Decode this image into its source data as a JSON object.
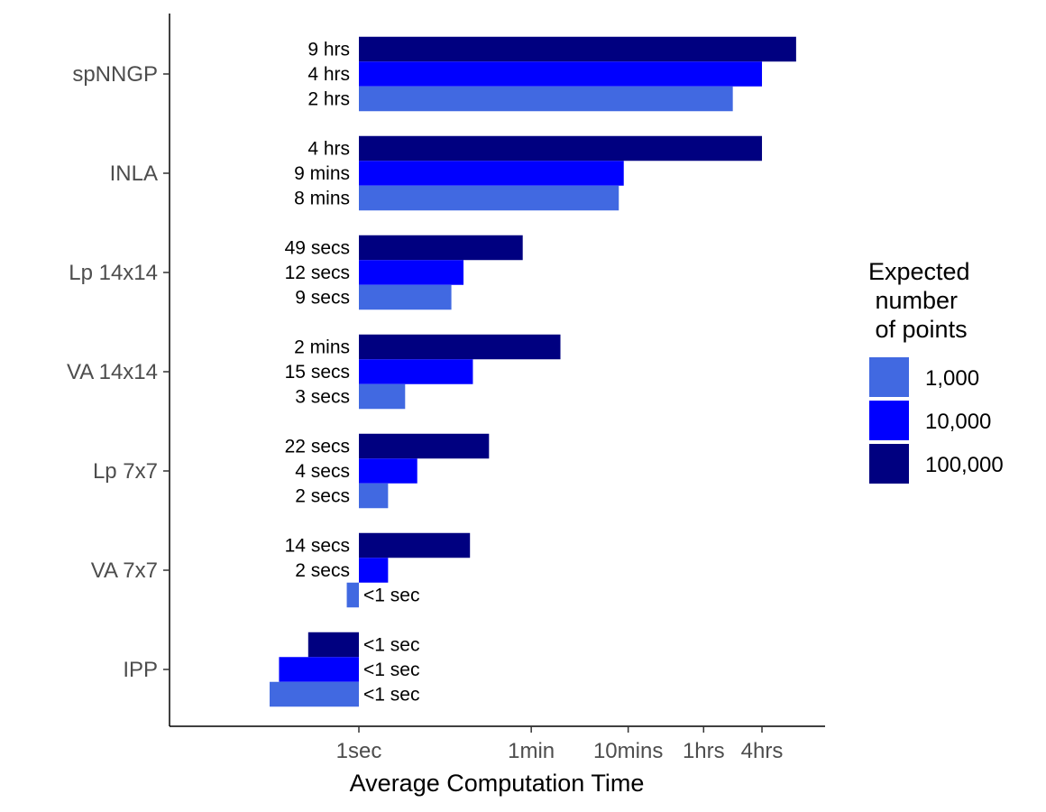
{
  "chart_data": {
    "type": "bar",
    "orientation": "horizontal",
    "xscale": "log",
    "xlabel": "Average Computation Time",
    "ylabel": "",
    "x_unit": "seconds",
    "xlim": [
      0.1,
      45000
    ],
    "bar_baseline": 1,
    "x_ticks": [
      {
        "value": 1,
        "label": "1sec"
      },
      {
        "value": 60,
        "label": "1min"
      },
      {
        "value": 600,
        "label": "10mins"
      },
      {
        "value": 3600,
        "label": "1hrs"
      },
      {
        "value": 14400,
        "label": "4hrs"
      }
    ],
    "categories": [
      "spNNGP",
      "INLA",
      "Lp 14x14",
      "VA 14x14",
      "Lp 7x7",
      "VA 7x7",
      "IPP"
    ],
    "series": [
      {
        "name": "100,000",
        "color": "#000080",
        "values": [
          32400,
          14400,
          49,
          120,
          22,
          14,
          0.3
        ],
        "labels": [
          "9 hrs",
          "4 hrs",
          "49 secs",
          "2 mins",
          "22 secs",
          "14 secs",
          "<1 sec"
        ]
      },
      {
        "name": "10,000",
        "color": "#0000FF",
        "values": [
          14400,
          540,
          12,
          15,
          4,
          2,
          0.15
        ],
        "labels": [
          "4 hrs",
          "9 mins",
          "12 secs",
          "15 secs",
          "4 secs",
          "2 secs",
          "<1 sec"
        ]
      },
      {
        "name": "1,000",
        "color": "#4169E1",
        "values": [
          7200,
          480,
          9,
          3,
          2,
          0.75,
          0.12
        ],
        "labels": [
          "2 hrs",
          "8 mins",
          "9 secs",
          "3 secs",
          "2 secs",
          "<1 sec",
          "<1 sec"
        ]
      }
    ],
    "legend": {
      "title": "Expected\n number\n of points",
      "placement": "right",
      "entries": [
        {
          "label": "1,000",
          "color": "#4169E1"
        },
        {
          "label": "10,000",
          "color": "#0000FF"
        },
        {
          "label": "100,000",
          "color": "#000080"
        }
      ]
    },
    "grid": false
  }
}
